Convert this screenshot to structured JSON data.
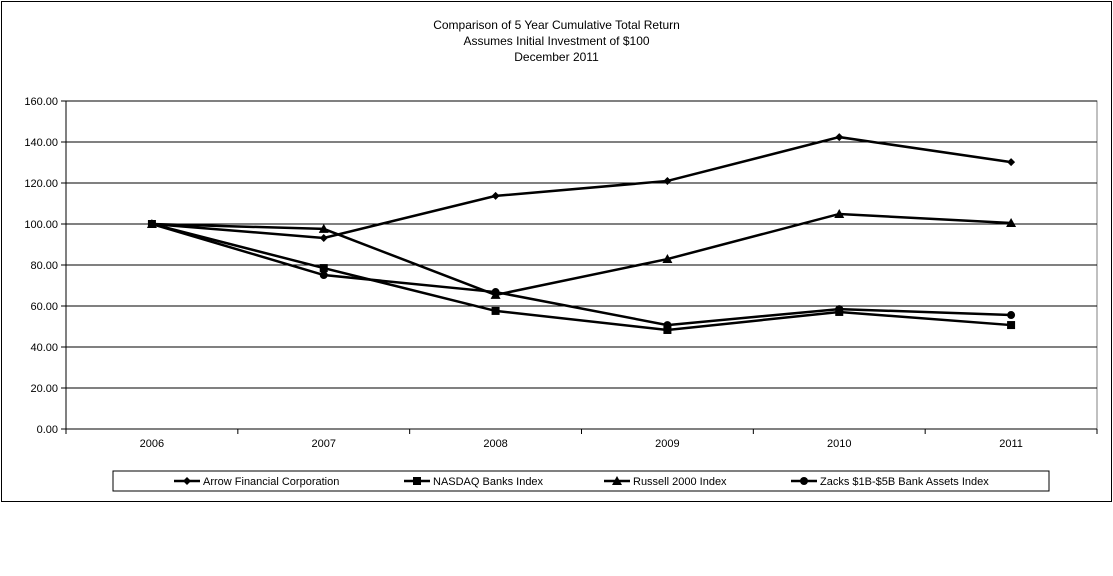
{
  "chart_data": {
    "type": "line",
    "title": [
      "Comparison of 5 Year Cumulative Total Return",
      "Assumes Initial Investment of $100",
      "December 2011"
    ],
    "categories": [
      "2006",
      "2007",
      "2008",
      "2009",
      "2010",
      "2011"
    ],
    "ylim": [
      0,
      160
    ],
    "yticks": [
      "0.00",
      "20.00",
      "40.00",
      "60.00",
      "80.00",
      "100.00",
      "120.00",
      "140.00",
      "160.00"
    ],
    "grid": true,
    "legend_placement": "bottom",
    "series": [
      {
        "name": "Arrow Financial Corporation",
        "marker": "diamond",
        "values": [
          100,
          93.2,
          113.7,
          121.0,
          142.4,
          130.2
        ]
      },
      {
        "name": "NASDAQ Banks Index",
        "marker": "square",
        "values": [
          100,
          78.5,
          57.6,
          48.3,
          57.1,
          50.7
        ]
      },
      {
        "name": "Russell 2000 Index",
        "marker": "triangle",
        "values": [
          100,
          97.6,
          65.4,
          82.9,
          104.9,
          100.5
        ]
      },
      {
        "name": "Zacks $1B-$5B Bank Assets Index",
        "marker": "circle",
        "values": [
          100,
          75.1,
          66.8,
          50.7,
          58.5,
          55.6
        ]
      }
    ],
    "colors": {
      "line": "#000000",
      "grid": "#000000"
    }
  }
}
